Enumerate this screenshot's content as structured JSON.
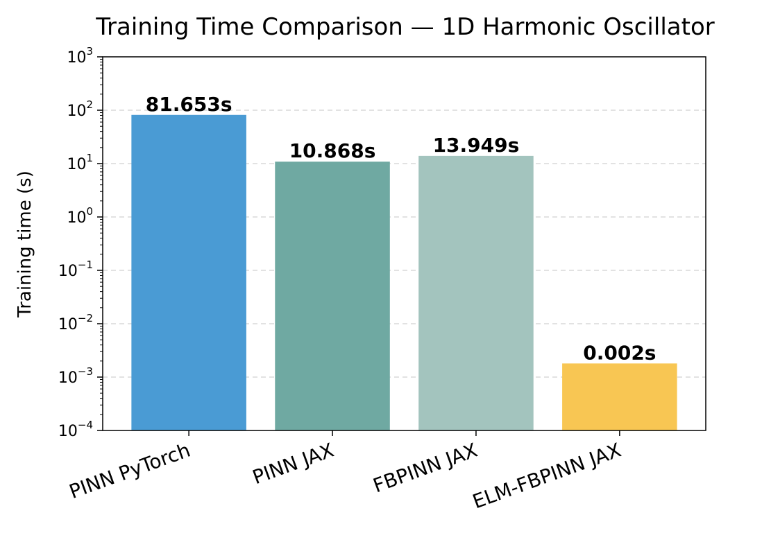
{
  "chart_data": {
    "type": "bar",
    "title": "Training Time Comparison — 1D Harmonic Oscillator",
    "xlabel": "",
    "ylabel": "Training time (s)",
    "yscale": "log",
    "ylim": [
      0.0001,
      1000
    ],
    "yticks": [
      {
        "base": "10",
        "exp": "−4",
        "value": 0.0001
      },
      {
        "base": "10",
        "exp": "−3",
        "value": 0.001
      },
      {
        "base": "10",
        "exp": "−2",
        "value": 0.01
      },
      {
        "base": "10",
        "exp": "−1",
        "value": 0.1
      },
      {
        "base": "10",
        "exp": "0",
        "value": 1
      },
      {
        "base": "10",
        "exp": "1",
        "value": 10
      },
      {
        "base": "10",
        "exp": "2",
        "value": 100
      },
      {
        "base": "10",
        "exp": "3",
        "value": 1000
      }
    ],
    "grid": "y-dashed",
    "categories": [
      "PINN PyTorch",
      "PINN JAX",
      "FBPINN JAX",
      "ELM-FBPINN JAX"
    ],
    "values": [
      81.653,
      10.868,
      13.949,
      0.0018
    ],
    "data_labels": [
      "81.653s",
      "10.868s",
      "13.949s",
      "0.002s"
    ],
    "colors": [
      "#4a9bd4",
      "#6fa9a2",
      "#a3c4be",
      "#f8c653"
    ]
  }
}
